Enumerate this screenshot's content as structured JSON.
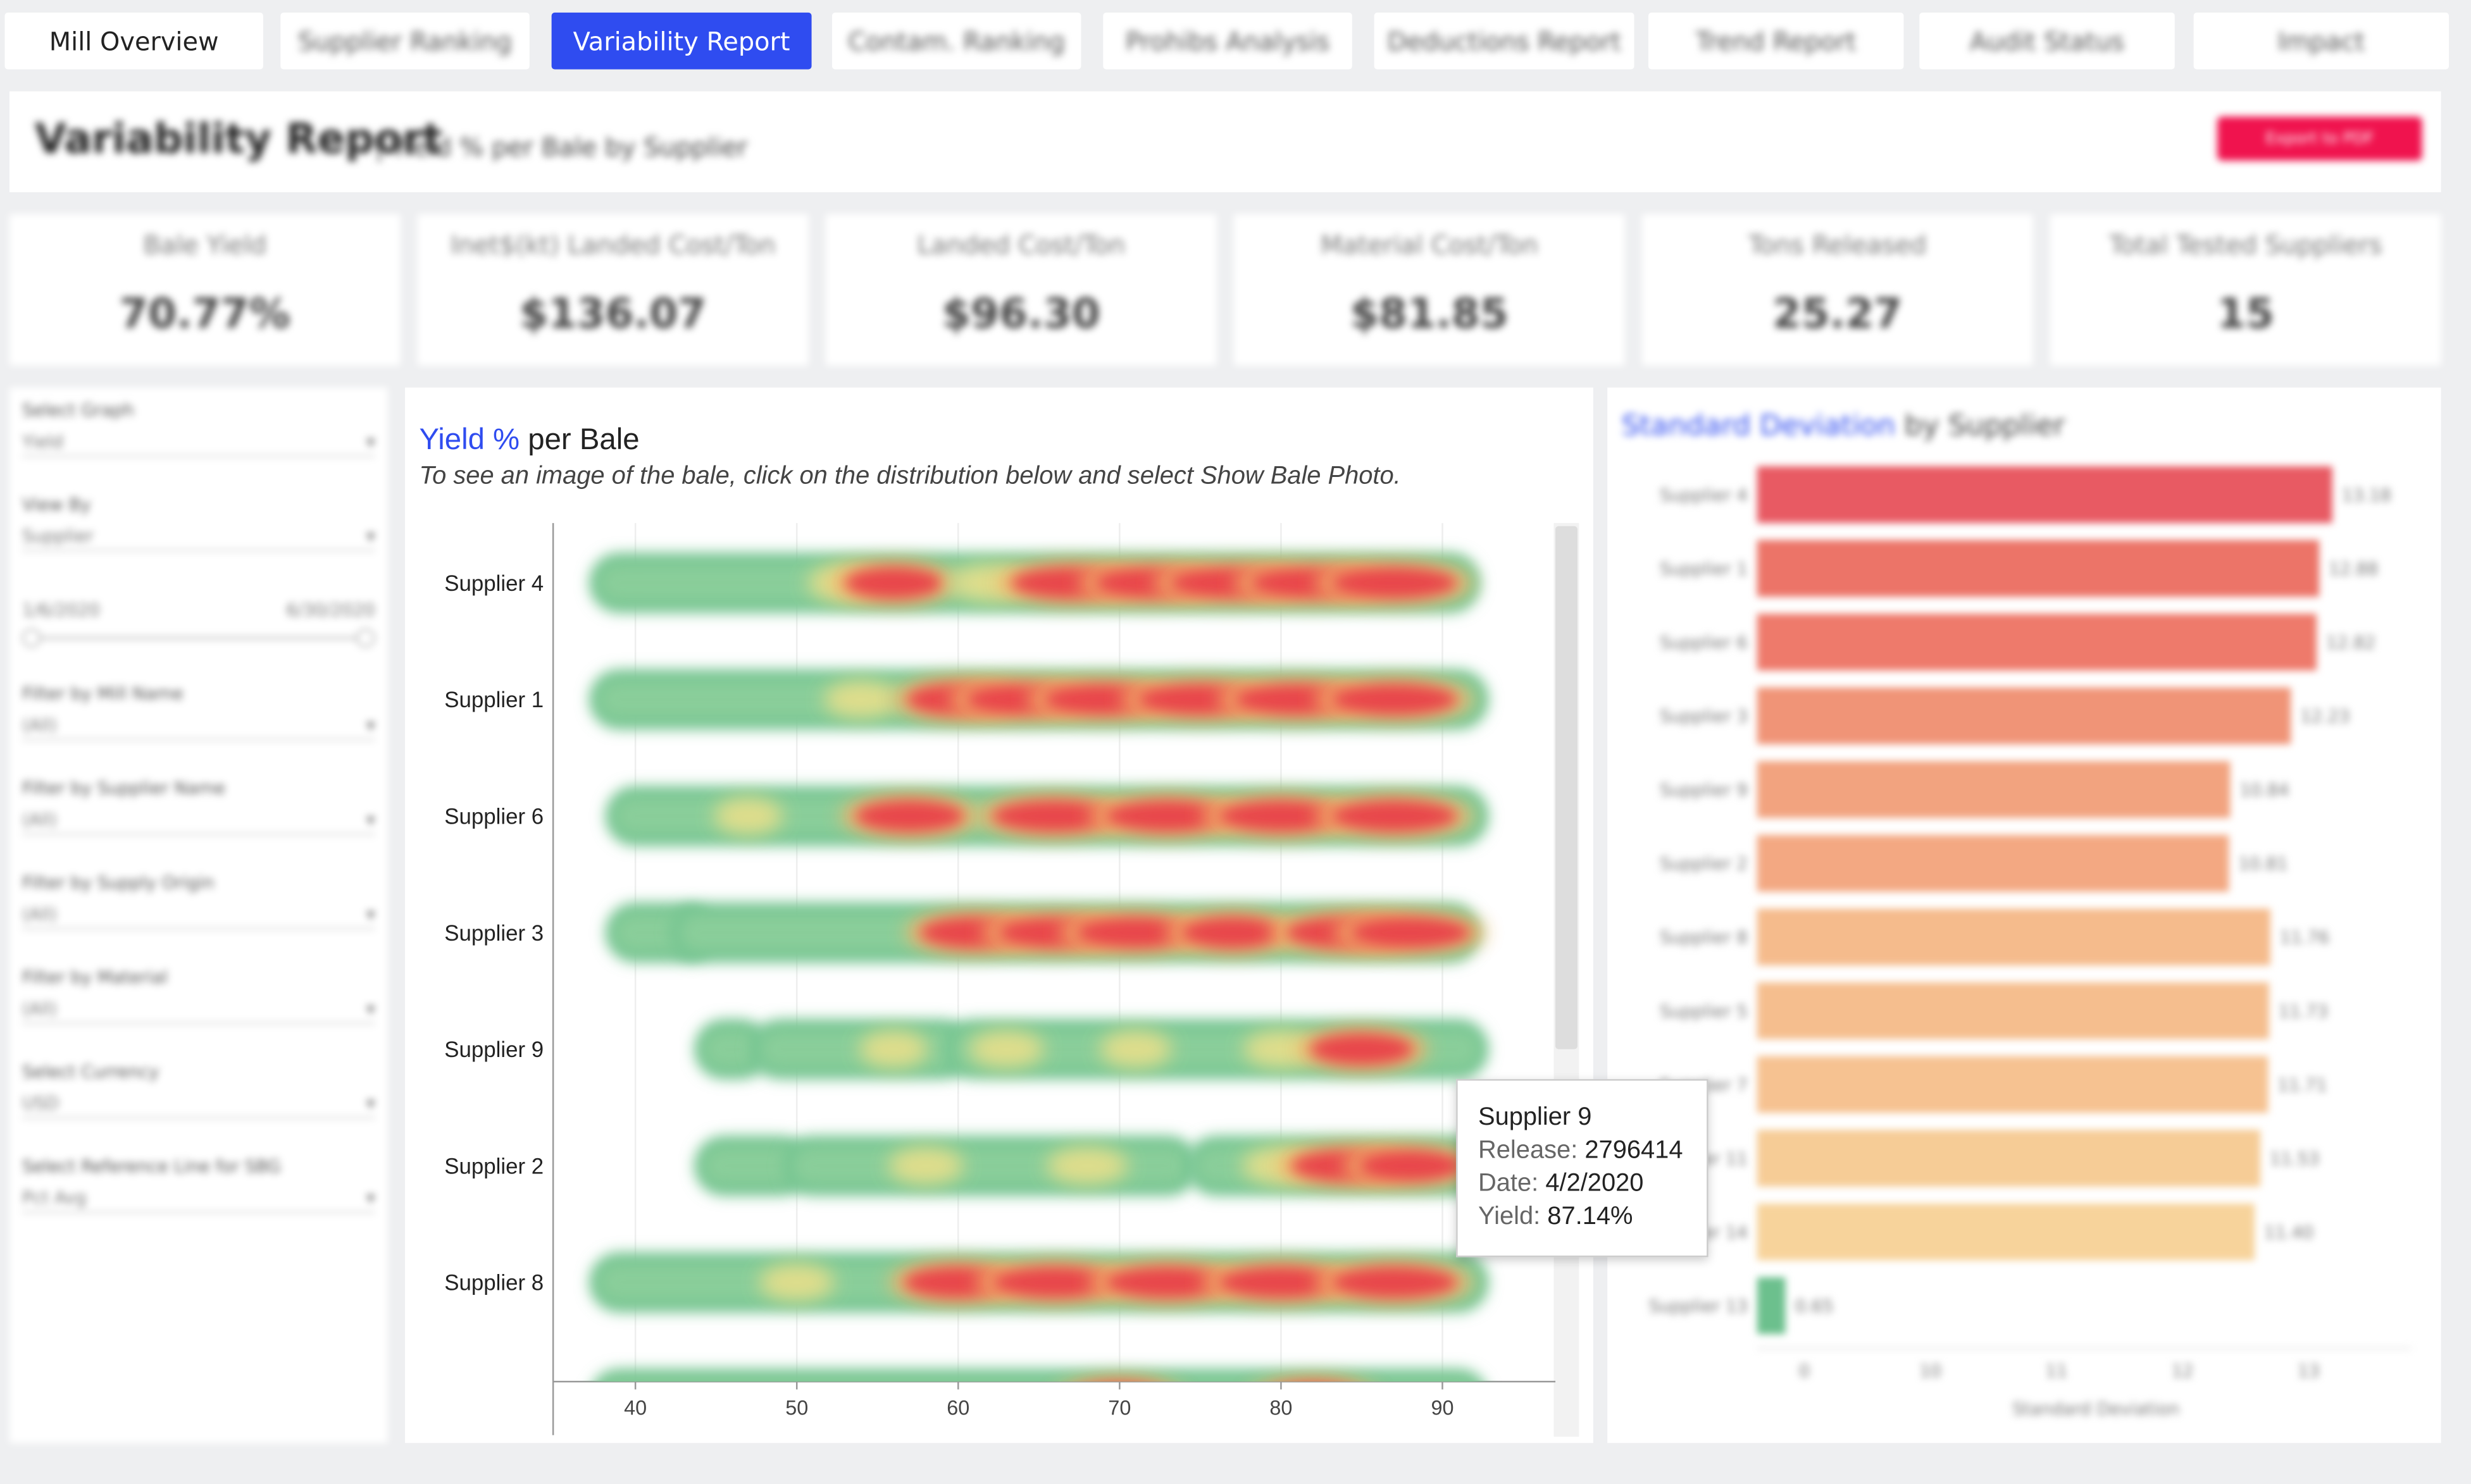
{
  "nav": {
    "tabs": [
      {
        "label": "Mill Overview",
        "active": false,
        "blurred": false
      },
      {
        "label": "Supplier Ranking",
        "active": false,
        "blurred": true
      },
      {
        "label": "Variability Report",
        "active": true,
        "blurred": false
      },
      {
        "label": "Contam. Ranking",
        "active": false,
        "blurred": true
      },
      {
        "label": "Prohibs Analysis",
        "active": false,
        "blurred": true
      },
      {
        "label": "Deductions Report",
        "active": false,
        "blurred": true
      },
      {
        "label": "Trend Report",
        "active": false,
        "blurred": true
      },
      {
        "label": "Audit Status",
        "active": false,
        "blurred": true
      },
      {
        "label": "Impact",
        "active": false,
        "blurred": true
      }
    ]
  },
  "header": {
    "title": "Variability Report",
    "subtitle": "| Yield % per Bale by Supplier",
    "export_label": "Export to PDF"
  },
  "kpis": [
    {
      "label": "Bale Yield",
      "value": "70.77%"
    },
    {
      "label": "Inet$(kt) Landed Cost/Ton",
      "value": "$136.07"
    },
    {
      "label": "Landed Cost/Ton",
      "value": "$96.30"
    },
    {
      "label": "Material Cost/Ton",
      "value": "$81.85"
    },
    {
      "label": "Tons Released",
      "value": "25.27"
    },
    {
      "label": "Total Tested Suppliers",
      "value": "15"
    }
  ],
  "filters": [
    {
      "label": "Select Graph",
      "value": "Yield"
    },
    {
      "label": "View By",
      "value": "Supplier"
    },
    {
      "label": "1/6/2020",
      "value": "",
      "range_end": "6/30/2020"
    },
    {
      "label": "Filter by Mill Name",
      "value": "(All)"
    },
    {
      "label": "Filter by Supplier Name",
      "value": "(All)"
    },
    {
      "label": "Filter by Supply Origin",
      "value": "(All)"
    },
    {
      "label": "Filter by Material",
      "value": "(All)"
    },
    {
      "label": "Select Currency",
      "value": "USD"
    },
    {
      "label": "Select Reference Line for SBG",
      "value": "Pct Avg"
    }
  ],
  "main_chart": {
    "title_accent": "Yield %",
    "title_rest": " per Bale",
    "subtitle": "To see an image of the bale, click on the distribution below and select Show Bale Photo."
  },
  "chart_data": [
    {
      "type": "heatmap",
      "title": "Yield % per Bale",
      "xlabel": "",
      "x_ticks": [
        40,
        50,
        60,
        70,
        80,
        90
      ],
      "xlim": [
        35,
        97
      ],
      "categories": [
        "Supplier 4",
        "Supplier 1",
        "Supplier 6",
        "Supplier 3",
        "Supplier 9",
        "Supplier 2",
        "Supplier 8",
        ""
      ],
      "series": [
        {
          "name": "Supplier 4",
          "segments": [
            [
              39,
              90.5
            ]
          ],
          "hotspots": [
            [
              53,
              0.3
            ],
            [
              56,
              0.5
            ],
            [
              62,
              0.4
            ],
            [
              67,
              0.9
            ],
            [
              72,
              0.8
            ],
            [
              77,
              1.0
            ],
            [
              82,
              1.0
            ],
            [
              87,
              1.0
            ]
          ]
        },
        {
          "name": "Supplier 1",
          "segments": [
            [
              39,
              91
            ]
          ],
          "hotspots": [
            [
              54,
              0.3
            ],
            [
              60,
              0.6
            ],
            [
              64,
              0.8
            ],
            [
              69,
              0.9
            ],
            [
              75,
              1.0
            ],
            [
              81,
              1.0
            ],
            [
              87,
              1.0
            ]
          ]
        },
        {
          "name": "Supplier 6",
          "segments": [
            [
              40,
              91
            ]
          ],
          "hotspots": [
            [
              47,
              0.2
            ],
            [
              57,
              0.7
            ],
            [
              66,
              1.0
            ],
            [
              73,
              1.0
            ],
            [
              80,
              1.0
            ],
            [
              87,
              1.0
            ]
          ]
        },
        {
          "name": "Supplier 3",
          "segments": [
            [
              40,
              43
            ],
            [
              44,
              90.5
            ]
          ],
          "hotspots": [
            [
              61,
              0.7
            ],
            [
              66,
              0.8
            ],
            [
              71,
              0.9
            ],
            [
              77,
              0.6
            ],
            [
              84,
              0.9
            ],
            [
              88,
              0.9
            ]
          ]
        },
        {
          "name": "Supplier 9",
          "segments": [
            [
              45.5,
              46.5
            ],
            [
              49,
              59
            ],
            [
              61,
              91
            ]
          ],
          "hotspots": [
            [
              56,
              0.2
            ],
            [
              63,
              0.3
            ],
            [
              71,
              0.25
            ],
            [
              80,
              0.3
            ],
            [
              85,
              0.6
            ]
          ]
        },
        {
          "name": "Supplier 2",
          "segments": [
            [
              45.5,
              49
            ],
            [
              51,
              73
            ],
            [
              76,
              91
            ]
          ],
          "hotspots": [
            [
              58,
              0.3
            ],
            [
              68,
              0.4
            ],
            [
              80,
              0.35
            ],
            [
              84,
              0.7
            ],
            [
              88,
              0.6
            ]
          ]
        },
        {
          "name": "Supplier 8",
          "segments": [
            [
              39,
              91
            ]
          ],
          "hotspots": [
            [
              50,
              0.3
            ],
            [
              60,
              0.7
            ],
            [
              66,
              1.0
            ],
            [
              73,
              1.0
            ],
            [
              80,
              1.0
            ],
            [
              87,
              1.0
            ]
          ]
        },
        {
          "name": "",
          "segments": [
            [
              39,
              91
            ]
          ],
          "hotspots": [
            [
              70,
              0.6
            ],
            [
              82,
              0.6
            ]
          ]
        }
      ]
    },
    {
      "type": "bar",
      "title": "Standard Deviation by Supplier",
      "xlabel": "Standard Deviation",
      "x_ticks": [
        "0",
        "10",
        "11",
        "12",
        "13"
      ],
      "categories": [
        "Supplier 4",
        "Supplier 1",
        "Supplier 6",
        "Supplier 3",
        "Supplier 9",
        "Supplier 2",
        "Supplier 8",
        "Supplier 5",
        "Supplier 7",
        "Supplier 11",
        "Supplier 14",
        "Supplier 13"
      ],
      "values": [
        13.18,
        12.88,
        12.82,
        12.23,
        10.84,
        10.81,
        11.76,
        11.73,
        11.71,
        11.53,
        11.4,
        0.65
      ],
      "value_labels": [
        "13.18",
        "12.88",
        "12.82",
        "12.23",
        "10.84",
        "10.81",
        "11.76",
        "11.73",
        "11.71",
        "11.53",
        "11.40",
        "0.65"
      ],
      "colors": [
        "#e85a63",
        "#ec7468",
        "#ee7a6b",
        "#f09477",
        "#f2a37f",
        "#f3a882",
        "#f5bb8c",
        "#f5be8e",
        "#f6c291",
        "#f6cc96",
        "#f7d39b",
        "#6cc08d"
      ]
    }
  ],
  "tooltip": {
    "title": "Supplier 9",
    "release_key": "Release:",
    "release_val": "2796414",
    "date_key": "Date:",
    "date_val": "4/2/2020",
    "yield_key": "Yield:",
    "yield_val": "87.14%"
  },
  "right_panel": {
    "title_accent": "Standard Deviation",
    "title_rest": " by Supplier"
  }
}
